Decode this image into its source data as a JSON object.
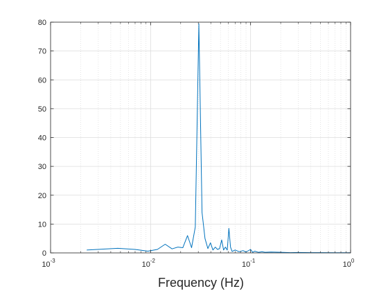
{
  "chart_data": {
    "type": "line",
    "xlabel": "Frequency (Hz)",
    "ylabel": "",
    "title": "",
    "xscale": "log",
    "xlim": [
      0.001,
      1
    ],
    "ylim": [
      0,
      80
    ],
    "grid": true,
    "minor_grid_x": true,
    "line_color": "#0072BD",
    "x_ticks": [
      {
        "value": 0.001,
        "base": "10",
        "exp": "-3"
      },
      {
        "value": 0.01,
        "base": "10",
        "exp": "-2"
      },
      {
        "value": 0.1,
        "base": "10",
        "exp": "-1"
      },
      {
        "value": 1,
        "base": "10",
        "exp": "0"
      }
    ],
    "y_ticks": [
      "0",
      "10",
      "20",
      "30",
      "40",
      "50",
      "60",
      "70",
      "80"
    ],
    "series": [
      {
        "x": [
          0.0023,
          0.0047,
          0.007,
          0.0094,
          0.0117,
          0.014,
          0.0164,
          0.0187,
          0.021,
          0.0234,
          0.0257,
          0.028,
          0.0304,
          0.0327,
          0.035,
          0.0374,
          0.0397,
          0.042,
          0.0444,
          0.0467,
          0.049,
          0.0514,
          0.0537,
          0.056,
          0.0584,
          0.0607,
          0.063,
          0.0654,
          0.07,
          0.077,
          0.084,
          0.09,
          0.1,
          0.105,
          0.11,
          0.12,
          0.13,
          0.14,
          0.16,
          0.2,
          0.25,
          0.3,
          0.4,
          0.5,
          0.7,
          1.0
        ],
        "y": [
          1.0,
          1.6,
          1.2,
          0.6,
          1.2,
          3.0,
          1.4,
          2.0,
          1.8,
          6.0,
          1.8,
          9.0,
          79.5,
          14.0,
          5.0,
          1.5,
          3.5,
          1.0,
          2.0,
          1.2,
          1.5,
          4.5,
          1.0,
          2.0,
          1.0,
          8.5,
          2.0,
          0.5,
          1.0,
          0.4,
          0.8,
          0.3,
          1.2,
          0.2,
          0.6,
          0.2,
          0.4,
          0.2,
          0.3,
          0.2,
          0.1,
          0.15,
          0.1,
          0.1,
          0.05,
          0.05
        ]
      }
    ]
  }
}
